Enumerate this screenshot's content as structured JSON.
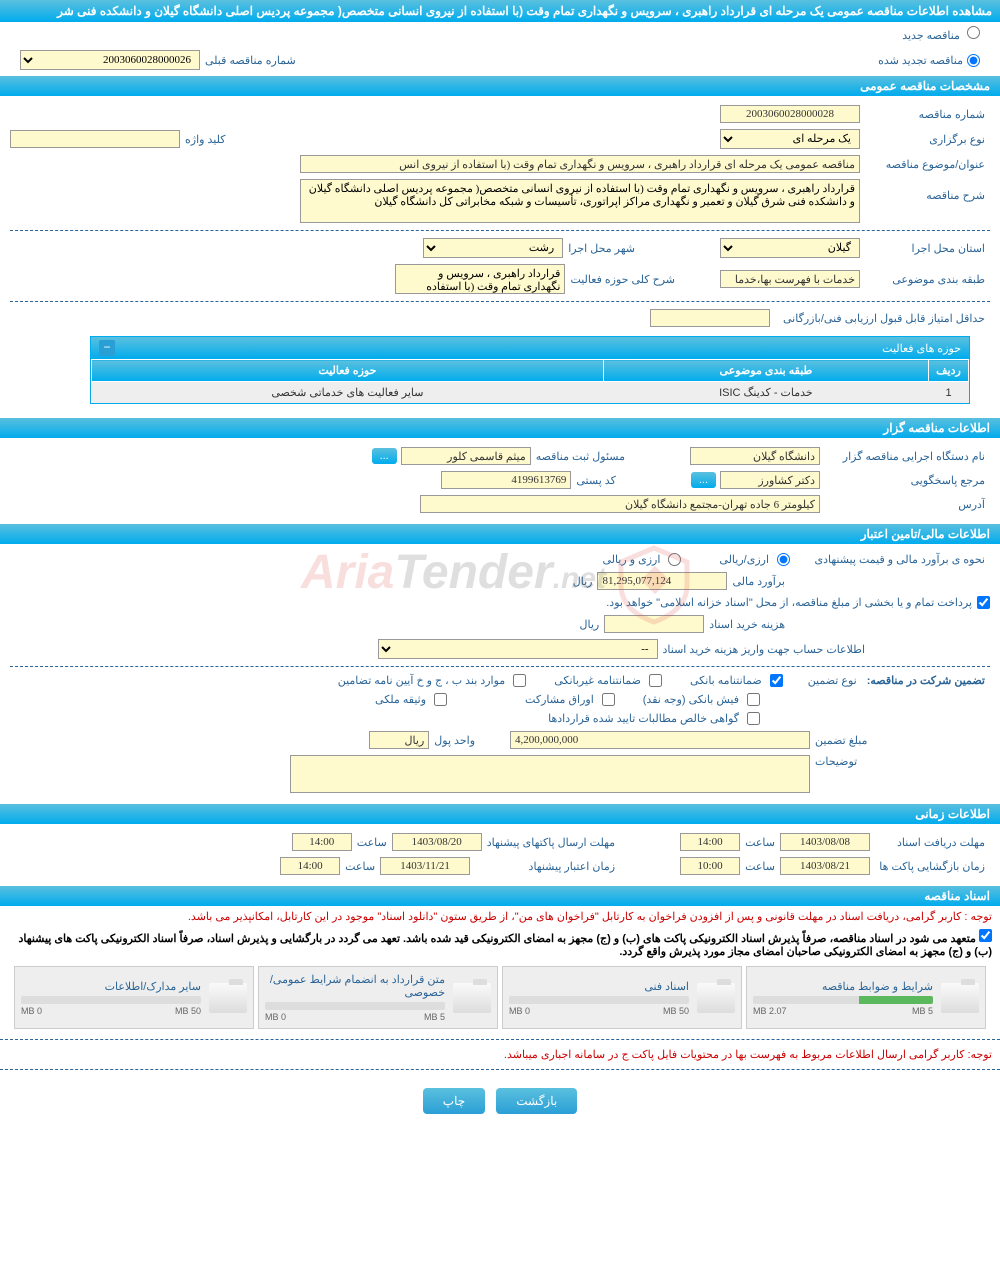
{
  "page_title": "مشاهده اطلاعات مناقصه عمومی یک مرحله ای قرارداد راهبری ، سرویس و نگهداری تمام وقت (با استفاده از نیروی انسانی متخصص( مجموعه پردیس اصلی دانشگاه گیلان و دانشکده فنی شر",
  "radios": {
    "new_tender": "مناقصه جدید",
    "renewed_tender": "مناقصه تجدید شده",
    "prev_number_label": "شماره مناقصه قبلی",
    "prev_number_value": "2003060028000026"
  },
  "sections": {
    "general": "مشخصات مناقصه عمومی",
    "holder": "اطلاعات مناقصه گزار",
    "financial": "اطلاعات مالی/تامین اعتبار",
    "time": "اطلاعات زمانی",
    "documents": "اسناد مناقصه"
  },
  "general": {
    "tender_number_label": "شماره مناقصه",
    "tender_number": "2003060028000028",
    "type_label": "نوع برگزاری",
    "type_value": "یک مرحله ای",
    "keyword_label": "کلید واژه",
    "keyword_value": "",
    "subject_label": "عنوان/موضوع مناقصه",
    "subject_value": "مناقصه عمومی یک مرحله ای قرارداد راهبری ، سرویس و نگهداری تمام وقت (با استفاده از نیروی انس",
    "desc_label": "شرح مناقصه",
    "desc_value": "قرارداد راهبری ، سرویس و نگهداری تمام وقت (با استفاده از نیروی انسانی متخصص( مجموعه پردیس اصلی دانشگاه گیلان و دانشکده فنی شرق گیلان و تعمیر و نگهداری مراکز اپراتوری، تأسیسات و شبکه مخابراتی کل دانشگاه گیلان",
    "province_label": "استان محل اجرا",
    "province_value": "گیلان",
    "city_label": "شهر محل اجرا",
    "city_value": "رشت",
    "category_label": "طبقه بندی موضوعی",
    "category_value": "خدمات با فهرست بها،خدما",
    "activity_desc_label": "شرح کلی حوزه فعالیت",
    "activity_desc_value": "قرارداد راهبری ، سرویس و نگهداری تمام وقت (با استفاده",
    "min_score_label": "حداقل امتیاز قابل قبول ارزیابی فنی/بازرگانی",
    "min_score_value": ""
  },
  "activities": {
    "header": "حوزه های فعالیت",
    "col_row": "ردیف",
    "col_category": "طبقه بندی موضوعی",
    "col_field": "حوزه فعالیت",
    "rows": [
      {
        "n": "1",
        "cat": "خدمات - کدینگ ISIC",
        "field": "سایر فعالیت های خدماتی شخصی"
      }
    ]
  },
  "holder": {
    "org_label": "نام دستگاه اجرایی مناقصه گزار",
    "org_value": "دانشگاه گیلان",
    "registrar_label": "مسئول ثبت مناقصه",
    "registrar_value": "میثم قاسمی کلور",
    "responder_label": "مرجع پاسخگویی",
    "responder_value": "دکتر کشاورز",
    "postal_label": "کد پستی",
    "postal_value": "4199613769",
    "address_label": "آدرس",
    "address_value": "کیلومتر 6 جاده تهران-مجتمع دانشگاه گیلان"
  },
  "financial": {
    "estimate_method_label": "نحوه ی برآورد مالی و قیمت پیشنهادی",
    "option_rial": "ارزی/ریالی",
    "option_both": "ارزی و ریالی",
    "estimate_label": "برآورد مالی",
    "estimate_value": "81,295,077,124",
    "currency": "ریال",
    "treasury_note": "پرداخت تمام و یا بخشی از مبلغ مناقصه، از محل \"اسناد خزانه اسلامی\" خواهد بود.",
    "doc_cost_label": "هزینه خرید اسناد",
    "doc_cost_value": "",
    "doc_cost_unit": "ریال",
    "account_label": "اطلاعات حساب جهت واریز هزینه خرید اسناد",
    "account_value": "--",
    "guarantee_title": "تضمین شرکت در مناقصه:",
    "guarantee_type_label": "نوع تضمین",
    "chk_bank": "ضمانتنامه بانکی",
    "chk_nonbank": "ضمانتنامه غیربانکی",
    "chk_regulation": "موارد بند ب ، ج و خ آیین نامه تضامین",
    "chk_cash": "فیش بانکی (وجه نقد)",
    "chk_bonds": "اوراق مشارکت",
    "chk_property": "وثیقه ملکی",
    "chk_cert": "گواهی خالص مطالبات تایید شده قراردادها",
    "amount_label": "مبلغ تضمین",
    "amount_value": "4,200,000,000",
    "unit_label": "واحد پول",
    "unit_value": "ریال",
    "notes_label": "توضیحات",
    "notes_value": ""
  },
  "time": {
    "doc_deadline_label": "مهلت دریافت اسناد",
    "doc_deadline_date": "1403/08/08",
    "doc_deadline_time_label": "ساعت",
    "doc_deadline_time": "14:00",
    "bid_send_label": "مهلت ارسال پاکتهای پیشنهاد",
    "bid_send_date": "1403/08/20",
    "bid_send_time": "14:00",
    "open_label": "زمان بازگشایی پاکت ها",
    "open_date": "1403/08/21",
    "open_time": "10:00",
    "validity_label": "زمان اعتبار پیشنهاد",
    "validity_date": "1403/11/21",
    "validity_time": "14:00"
  },
  "documents": {
    "note1": "توجه : کاربر گرامی، دریافت اسناد در مهلت قانونی و پس از افزودن فراخوان به کارتابل \"فراخوان های من\"، از طریق ستون \"دانلود اسناد\" موجود در این کارتابل، امکانپذیر می باشد.",
    "note2": "متعهد می شود در اسناد مناقصه، صرفاً پذیرش اسناد الکترونیکی پاکت های (ب) و (ج) مجهز به امضای الکترونیکی قید شده باشد. تعهد می گردد در بارگشایی و پذیرش اسناد، صرفاً اسناد الکترونیکی پاکت های پیشنهاد (ب) و (ج) مجهز به امضای الکترونیکی صاحبان امضای مجاز مورد پذیرش واقع گردد.",
    "files": [
      {
        "title": "شرایط و ضوابط مناقصه",
        "used": "2.07 MB",
        "max": "5 MB",
        "pct": 41
      },
      {
        "title": "اسناد فنی",
        "used": "0 MB",
        "max": "50 MB",
        "pct": 0
      },
      {
        "title": "متن قرارداد به انضمام شرایط عمومی/خصوصی",
        "used": "0 MB",
        "max": "5 MB",
        "pct": 0
      },
      {
        "title": "سایر مدارک/اطلاعات",
        "used": "0 MB",
        "max": "50 MB",
        "pct": 0
      }
    ],
    "note3": "توجه: کاربر گرامی ارسال اطلاعات مربوط به فهرست بها در محتویات فایل پاکت ج در سامانه اجباری میباشد."
  },
  "buttons": {
    "back": "بازگشت",
    "print": "چاپ"
  },
  "watermark": {
    "t1": "Aria",
    "t2": "Tender",
    "t3": ".net"
  }
}
